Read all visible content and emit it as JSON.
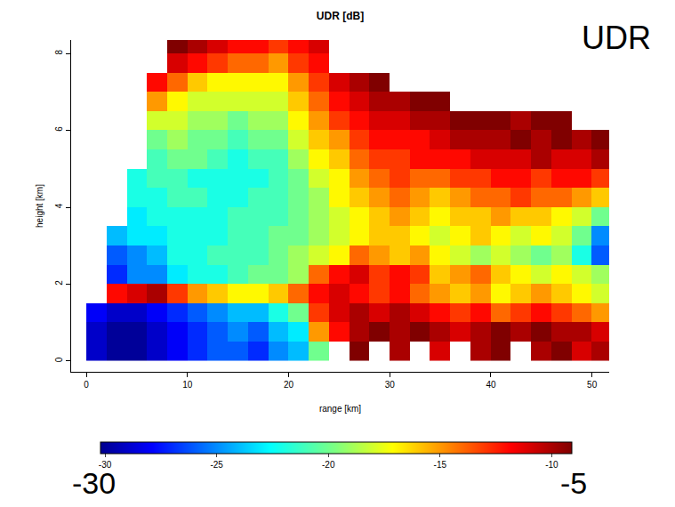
{
  "chart_data": {
    "type": "heatmap",
    "title": "UDR [dB]",
    "x_label": "range [km]",
    "y_label": "height [km]",
    "annotations": [
      "UDR",
      "-30",
      "-5"
    ],
    "xlim": [
      -1.5,
      51.7
    ],
    "xticks": [
      0,
      10,
      20,
      30,
      40,
      50
    ],
    "ylim": [
      -0.28,
      8.35
    ],
    "yticks": [
      0,
      2,
      4,
      6,
      8
    ],
    "grid": false,
    "x": [
      1,
      3,
      5,
      7,
      9,
      11,
      13,
      15,
      17,
      19,
      21,
      23,
      25,
      27,
      29,
      31,
      33,
      35,
      37,
      39,
      41,
      43,
      45,
      47,
      49,
      51
    ],
    "y": [
      0.25,
      0.75,
      1.25,
      1.75,
      2.25,
      2.75,
      3.25,
      3.75,
      4.25,
      4.75,
      5.25,
      5.75,
      6.25,
      6.75,
      7.25,
      7.75,
      8.25
    ],
    "z": [
      [
        -29,
        -30,
        -30,
        -29,
        -28,
        -27,
        -26,
        -26,
        -27,
        -25,
        -24,
        -20,
        null,
        -9,
        null,
        -10,
        null,
        -11,
        null,
        -10,
        -9,
        null,
        -10,
        -9,
        -11,
        -10
      ],
      [
        -29,
        -30,
        -30,
        -29,
        -28,
        -27,
        -26,
        -25,
        -26,
        -24,
        -23,
        -15,
        -12,
        -10,
        -9,
        -10,
        -9,
        -10,
        -11,
        -10,
        -9,
        -10,
        -9,
        -10,
        -10,
        -11
      ],
      [
        -28,
        -29,
        -29,
        -28,
        -27,
        -26,
        -25,
        -24,
        -24,
        -22,
        -20,
        -13,
        -11,
        -10,
        -11,
        -10,
        -11,
        -12,
        -13,
        -12,
        -14,
        -13,
        -12,
        -13,
        -14,
        -15
      ],
      [
        null,
        -12,
        -11,
        -10,
        -13,
        -15,
        -16,
        -17,
        -17,
        -16,
        -14,
        -12,
        -11,
        -12,
        -13,
        -12,
        -14,
        -15,
        -16,
        -15,
        -17,
        -16,
        -15,
        -16,
        -17,
        -18
      ],
      [
        null,
        -27,
        -25,
        -25,
        -23,
        -22,
        -22,
        -21,
        -20,
        -20,
        -19,
        -14,
        -12,
        -11,
        -13,
        -12,
        -13,
        -16,
        -15,
        -14,
        -16,
        -17,
        -18,
        -17,
        -18,
        -19
      ],
      [
        null,
        -26,
        -25,
        -24,
        -22,
        -22,
        -21,
        -21,
        -21,
        -20,
        -19,
        -18,
        -17,
        -14,
        -15,
        -16,
        -15,
        -17,
        -18,
        -19,
        -18,
        -19,
        -20,
        -19,
        -22,
        -26
      ],
      [
        null,
        -24,
        -23,
        -23,
        -22,
        -22,
        -22,
        -21,
        -21,
        -20,
        -20,
        -19,
        -18,
        -17,
        -16,
        -16,
        -17,
        -18,
        -17,
        -16,
        -17,
        -18,
        -17,
        -18,
        -20,
        -25
      ],
      [
        null,
        null,
        -23,
        -22,
        -22,
        -22,
        -22,
        -21,
        -21,
        -21,
        -20,
        -19,
        -18,
        -17,
        -16,
        -15,
        -16,
        -17,
        -16,
        -16,
        -15,
        -16,
        -16,
        -17,
        -18,
        -20
      ],
      [
        null,
        null,
        -22,
        -22,
        -21,
        -21,
        -22,
        -22,
        -21,
        -21,
        -20,
        -19,
        -17,
        -16,
        -15,
        -14,
        -15,
        -16,
        -15,
        -14,
        -14,
        -13,
        -14,
        -14,
        -15,
        -16
      ],
      [
        null,
        null,
        -22,
        -21,
        -21,
        -22,
        -22,
        -22,
        -22,
        -21,
        -20,
        -18,
        -17,
        -15,
        -14,
        -13,
        -14,
        -14,
        -13,
        -13,
        -12,
        -12,
        -13,
        -12,
        -12,
        -13
      ],
      [
        null,
        null,
        null,
        -21,
        -20,
        -20,
        -21,
        -22,
        -21,
        -21,
        -19,
        -17,
        -16,
        -14,
        -13,
        -13,
        -12,
        -12,
        -12,
        -11,
        -11,
        -11,
        -10,
        -11,
        -11,
        -10
      ],
      [
        null,
        null,
        null,
        -20,
        -19,
        -20,
        -20,
        -21,
        -20,
        -20,
        -18,
        -16,
        -15,
        -13,
        -12,
        -12,
        -12,
        -11,
        -10,
        -10,
        -10,
        -9,
        -10,
        -9,
        -10,
        -9
      ],
      [
        null,
        null,
        null,
        -18,
        -18,
        -19,
        -19,
        -20,
        -19,
        -19,
        -17,
        -15,
        -13,
        -12,
        -11,
        -11,
        -10,
        -10,
        -9,
        -9,
        -9,
        -10,
        -9,
        -9,
        null,
        null
      ],
      [
        null,
        null,
        null,
        -15,
        -17,
        -18,
        -18,
        -18,
        -18,
        -18,
        -16,
        -14,
        -12,
        -11,
        -10,
        -10,
        -9,
        -9,
        null,
        null,
        null,
        null,
        null,
        null,
        null,
        null
      ],
      [
        null,
        null,
        null,
        -12,
        -14,
        -16,
        -17,
        -17,
        -17,
        -17,
        -15,
        -13,
        -11,
        -10,
        -9,
        null,
        null,
        null,
        null,
        null,
        null,
        null,
        null,
        null,
        null,
        null
      ],
      [
        null,
        null,
        null,
        null,
        -11,
        -12,
        -13,
        -14,
        -14,
        -15,
        -13,
        -12,
        null,
        null,
        null,
        null,
        null,
        null,
        null,
        null,
        null,
        null,
        null,
        null,
        null,
        null
      ],
      [
        null,
        null,
        null,
        null,
        -9,
        -10,
        -11,
        -12,
        -12,
        -13,
        -12,
        -11,
        null,
        null,
        null,
        null,
        null,
        null,
        null,
        null,
        null,
        null,
        null,
        null,
        null,
        null
      ]
    ],
    "colorbar": {
      "range": [
        -30.2,
        -9.1
      ],
      "ticks": [
        -30,
        -25,
        -20,
        -15,
        -10
      ]
    }
  }
}
